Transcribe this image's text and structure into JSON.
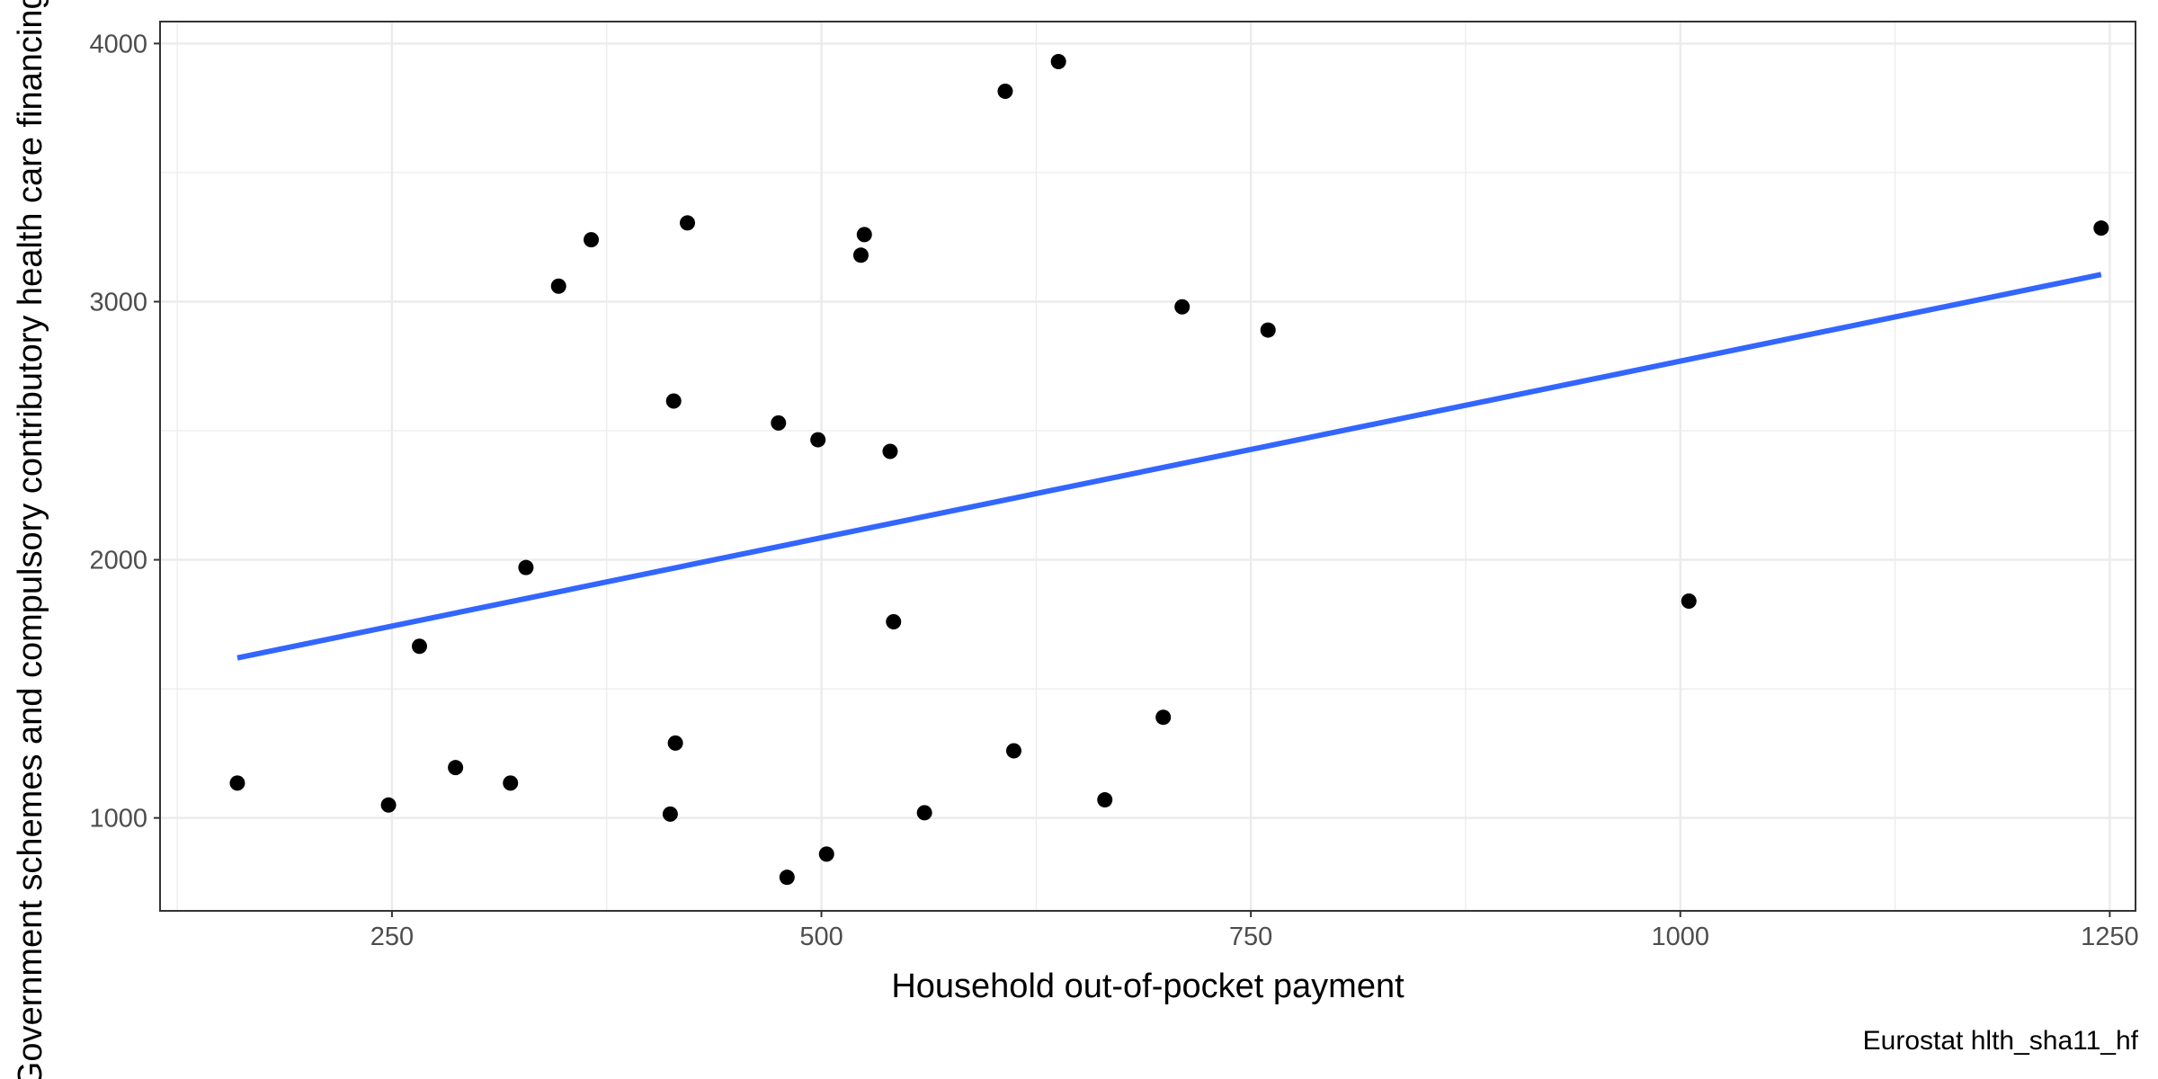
{
  "chart_data": {
    "type": "scatter",
    "xlabel": "Household out-of-pocket payment",
    "ylabel": "Government schemes and compulsory contributory health care financing schemes",
    "caption": "Eurostat hlth_sha11_hf",
    "xlim": [
      115,
      1265
    ],
    "ylim": [
      640,
      4085
    ],
    "x_ticks": [
      250,
      500,
      750,
      1000,
      1250
    ],
    "y_ticks": [
      1000,
      2000,
      3000,
      4000
    ],
    "grid": true,
    "points": [
      {
        "x": 160,
        "y": 1135
      },
      {
        "x": 248,
        "y": 1050
      },
      {
        "x": 266,
        "y": 1665
      },
      {
        "x": 287,
        "y": 1195
      },
      {
        "x": 319,
        "y": 1135
      },
      {
        "x": 328,
        "y": 1970
      },
      {
        "x": 347,
        "y": 3060
      },
      {
        "x": 366,
        "y": 3240
      },
      {
        "x": 412,
        "y": 1015
      },
      {
        "x": 414,
        "y": 2615
      },
      {
        "x": 415,
        "y": 1290
      },
      {
        "x": 422,
        "y": 3305
      },
      {
        "x": 475,
        "y": 2530
      },
      {
        "x": 480,
        "y": 770
      },
      {
        "x": 498,
        "y": 2465
      },
      {
        "x": 503,
        "y": 860
      },
      {
        "x": 523,
        "y": 3180
      },
      {
        "x": 525,
        "y": 3260
      },
      {
        "x": 540,
        "y": 2420
      },
      {
        "x": 542,
        "y": 1760
      },
      {
        "x": 560,
        "y": 1020
      },
      {
        "x": 607,
        "y": 3815
      },
      {
        "x": 612,
        "y": 1260
      },
      {
        "x": 638,
        "y": 3930
      },
      {
        "x": 665,
        "y": 1070
      },
      {
        "x": 699,
        "y": 1390
      },
      {
        "x": 710,
        "y": 2980
      },
      {
        "x": 760,
        "y": 2890
      },
      {
        "x": 1005,
        "y": 1840
      },
      {
        "x": 1245,
        "y": 3285
      }
    ],
    "trend_line": {
      "x": [
        160,
        1245
      ],
      "y": [
        1620,
        3105
      ]
    },
    "colors": {
      "points": "#000000",
      "trend": "#3366ff",
      "grid": "#ebebeb",
      "panel_border": "#333333"
    }
  }
}
